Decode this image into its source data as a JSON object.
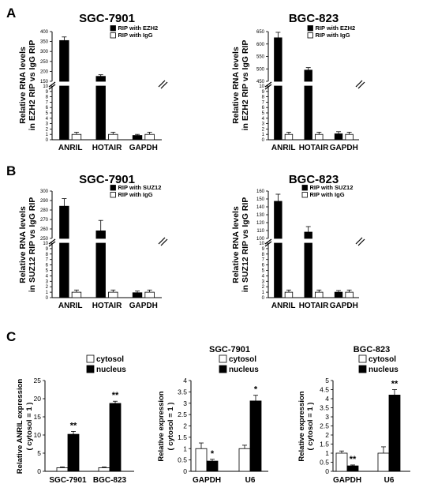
{
  "panel_labels": [
    "A",
    "B",
    "C"
  ],
  "chart_data": [
    {
      "id": "A1",
      "type": "bar",
      "title": "SGC-7901",
      "ylabel_lines": [
        "Relative RNA levels",
        "in EZH2 RIP vs IgG RIP"
      ],
      "categories": [
        "ANRIL",
        "HOTAIR",
        "GAPDH"
      ],
      "series": [
        {
          "name": "RIP with EZH2",
          "color": "#000000",
          "values": [
            355,
            175,
            0.8
          ],
          "errors": [
            18,
            8,
            0.2
          ]
        },
        {
          "name": "RIP with IgG",
          "color": "#ffffff",
          "values": [
            1.0,
            1.0,
            1.0
          ],
          "errors": [
            0.4,
            0.4,
            0.4
          ]
        }
      ],
      "axis_break": true,
      "lower_ylim": [
        0,
        10
      ],
      "lower_yticks": [
        0,
        1,
        2,
        3,
        4,
        5,
        6,
        7,
        8,
        9,
        10
      ],
      "upper_ylim": [
        150,
        400
      ],
      "upper_yticks": [
        150,
        200,
        250,
        300,
        350,
        400
      ]
    },
    {
      "id": "A2",
      "type": "bar",
      "title": "BGC-823",
      "ylabel_lines": [
        "Relative RNA levels",
        "in EZH2 RIP vs IgG RIP"
      ],
      "categories": [
        "ANRIL",
        "HOTAIR",
        "GAPDH"
      ],
      "series": [
        {
          "name": "RIP with EZH2",
          "color": "#000000",
          "values": [
            625,
            495,
            1.1
          ],
          "errors": [
            22,
            10,
            0.4
          ]
        },
        {
          "name": "RIP with IgG",
          "color": "#ffffff",
          "values": [
            1.0,
            1.0,
            1.0
          ],
          "errors": [
            0.4,
            0.4,
            0.4
          ]
        }
      ],
      "axis_break": true,
      "lower_ylim": [
        0,
        10
      ],
      "lower_yticks": [
        0,
        1,
        2,
        3,
        4,
        5,
        6,
        7,
        8,
        9,
        10
      ],
      "upper_ylim": [
        450,
        650
      ],
      "upper_yticks": [
        450,
        500,
        550,
        600,
        650
      ]
    },
    {
      "id": "B1",
      "type": "bar",
      "title": "SGC-7901",
      "ylabel_lines": [
        "Relative RNA levels",
        "in SUZ12 RIP vs IgG RIP"
      ],
      "categories": [
        "ANRIL",
        "HOTAIR",
        "GAPDH"
      ],
      "series": [
        {
          "name": "RIP with SUZ12",
          "color": "#000000",
          "values": [
            284,
            258,
            0.9
          ],
          "errors": [
            8,
            11,
            0.3
          ]
        },
        {
          "name": "RIP with IgG",
          "color": "#ffffff",
          "values": [
            1.0,
            1.0,
            1.0
          ],
          "errors": [
            0.4,
            0.4,
            0.4
          ]
        }
      ],
      "axis_break": true,
      "lower_ylim": [
        0,
        10
      ],
      "lower_yticks": [
        0,
        1,
        2,
        3,
        4,
        5,
        6,
        7,
        8,
        9,
        10
      ],
      "upper_ylim": [
        250,
        300
      ],
      "upper_yticks": [
        250,
        260,
        270,
        280,
        290,
        300
      ]
    },
    {
      "id": "B2",
      "type": "bar",
      "title": "BGC-823",
      "ylabel_lines": [
        "Relative RNA levels",
        "in SUZ12 RIP vs IgG RIP"
      ],
      "categories": [
        "ANRIL",
        "HOTAIR",
        "GAPDH"
      ],
      "series": [
        {
          "name": "RIP with SUZ12",
          "color": "#000000",
          "values": [
            147,
            108,
            1.0
          ],
          "errors": [
            9,
            7,
            0.3
          ]
        },
        {
          "name": "RIP with IgG",
          "color": "#ffffff",
          "values": [
            1.0,
            1.0,
            1.0
          ],
          "errors": [
            0.4,
            0.4,
            0.4
          ]
        }
      ],
      "axis_break": true,
      "lower_ylim": [
        0,
        10
      ],
      "lower_yticks": [
        0,
        1,
        2,
        3,
        4,
        5,
        6,
        7,
        8,
        9,
        10
      ],
      "upper_ylim": [
        100,
        160
      ],
      "upper_yticks": [
        100,
        110,
        120,
        130,
        140,
        150,
        160
      ]
    },
    {
      "id": "C1",
      "type": "bar",
      "title": "",
      "ylabel_lines": [
        "Relative ANRIL expression",
        "( cytosol = 1 )"
      ],
      "categories": [
        "SGC-7901",
        "BGC-823"
      ],
      "series": [
        {
          "name": "cytosol",
          "color": "#ffffff",
          "values": [
            1.0,
            1.0
          ],
          "errors": [
            0.2,
            0.2
          ]
        },
        {
          "name": "nucleus",
          "color": "#000000",
          "values": [
            10.2,
            18.7
          ],
          "errors": [
            0.8,
            0.6
          ]
        }
      ],
      "ylim": [
        0,
        25
      ],
      "yticks": [
        0,
        5,
        10,
        15,
        20,
        25
      ],
      "significance": [
        "**",
        "**"
      ]
    },
    {
      "id": "C2",
      "type": "bar",
      "title": "SGC-7901",
      "ylabel_lines": [
        "Relative expression",
        "( cytosol = 1 )"
      ],
      "categories": [
        "GAPDH",
        "U6"
      ],
      "series": [
        {
          "name": "cytosol",
          "color": "#ffffff",
          "values": [
            1.0,
            1.0
          ],
          "errors": [
            0.25,
            0.15
          ]
        },
        {
          "name": "nucleus",
          "color": "#000000",
          "values": [
            0.45,
            3.1
          ],
          "errors": [
            0.08,
            0.25
          ]
        }
      ],
      "ylim": [
        0,
        4
      ],
      "yticks": [
        0,
        0.5,
        1,
        1.5,
        2,
        2.5,
        3,
        3.5,
        4
      ],
      "significance": [
        "*",
        "*"
      ]
    },
    {
      "id": "C3",
      "type": "bar",
      "title": "BGC-823",
      "ylabel_lines": [
        "Relative expression",
        "( cytosol = 1 )"
      ],
      "categories": [
        "GAPDH",
        "U6"
      ],
      "series": [
        {
          "name": "cytosol",
          "color": "#ffffff",
          "values": [
            1.0,
            1.0
          ],
          "errors": [
            0.12,
            0.35
          ]
        },
        {
          "name": "nucleus",
          "color": "#000000",
          "values": [
            0.3,
            4.2
          ],
          "errors": [
            0.05,
            0.3
          ]
        }
      ],
      "ylim": [
        0,
        5
      ],
      "yticks": [
        0,
        0.5,
        1,
        1.5,
        2,
        2.5,
        3,
        3.5,
        4,
        4.5,
        5
      ],
      "significance": [
        "**",
        "**"
      ]
    }
  ]
}
